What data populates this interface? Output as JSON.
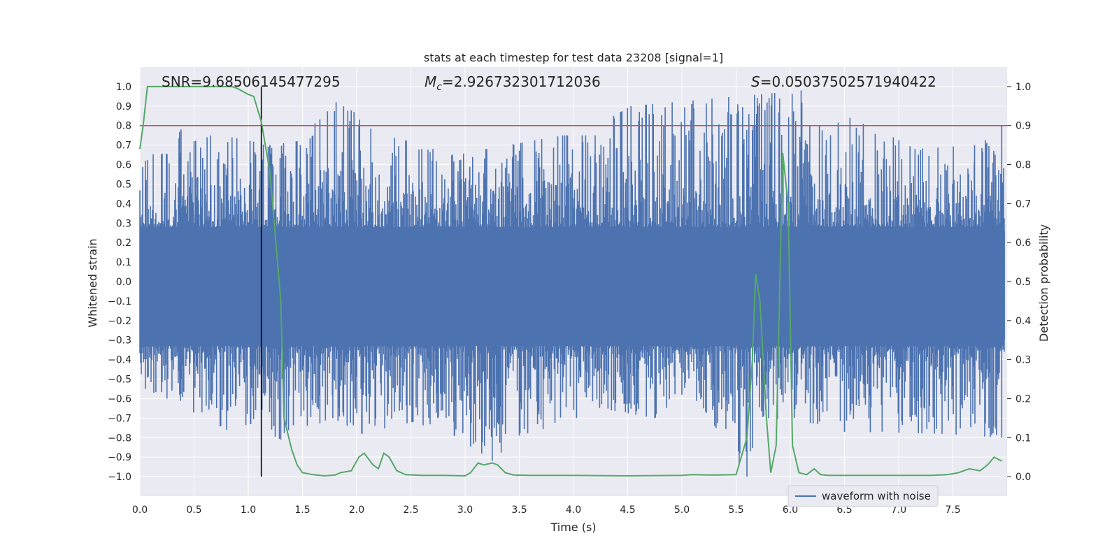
{
  "chart_data": {
    "type": "line",
    "title": "stats at each timestep for test data 23208 [signal=1]",
    "xlabel": "Time (s)",
    "ylabel": "Whitened strain",
    "y2label": "Detection probability",
    "xlim": [
      0,
      8
    ],
    "ylim": [
      -1.1,
      1.1
    ],
    "y2lim": [
      -0.05,
      1.05
    ],
    "xticks": [
      0.0,
      0.5,
      1.0,
      1.5,
      2.0,
      2.5,
      3.0,
      3.5,
      4.0,
      4.5,
      5.0,
      5.5,
      6.0,
      6.5,
      7.0,
      7.5
    ],
    "xtick_labels": [
      "0.0",
      "0.5",
      "1.0",
      "1.5",
      "2.0",
      "2.5",
      "3.0",
      "3.5",
      "4.0",
      "4.5",
      "5.0",
      "5.5",
      "6.0",
      "6.5",
      "7.0",
      "7.5"
    ],
    "yticks": [
      1.0,
      0.9,
      0.8,
      0.7,
      0.6,
      0.5,
      0.4,
      0.3,
      0.2,
      0.1,
      0.0,
      -0.1,
      -0.2,
      -0.3,
      -0.4,
      -0.5,
      -0.6,
      -0.7,
      -0.8,
      -0.9,
      -1.0
    ],
    "ytick_labels": [
      "1.0",
      "0.9",
      "0.8",
      "0.7",
      "0.6",
      "0.5",
      "0.4",
      "0.3",
      "0.2",
      "0.1",
      "0.0",
      "−0.1",
      "−0.2",
      "−0.3",
      "−0.4",
      "−0.5",
      "−0.6",
      "−0.7",
      "−0.8",
      "−0.9",
      "−1.0"
    ],
    "y2ticks": [
      1.0,
      0.9,
      0.8,
      0.7,
      0.6,
      0.5,
      0.4,
      0.3,
      0.2,
      0.1,
      0.0
    ],
    "y2tick_labels": [
      "1.0",
      "0.9",
      "0.8",
      "0.7",
      "0.6",
      "0.5",
      "0.4",
      "0.3",
      "0.2",
      "0.1",
      "0.0"
    ],
    "annotations": {
      "snr": "SNR=9.68506145477295",
      "mc_symbol": "M",
      "mc_sub": "c",
      "mc_value": "=2.926732301712036",
      "s_symbol": "S",
      "s_value": "=0.05037502571940422"
    },
    "legend": {
      "label": "waveform with noise",
      "position": "lower-right"
    },
    "vline_x": 1.12,
    "threshold_prob": 0.9,
    "colors": {
      "waveform": "#4c72b0",
      "probability": "#55a868",
      "threshold": "#c44e52",
      "vline": "#000000",
      "axes_bg": "#eaeaf2",
      "grid": "#ffffff"
    },
    "waveform_peaks": {
      "max": [
        [
          0.05,
          0.62
        ],
        [
          0.38,
          0.78
        ],
        [
          0.5,
          0.72
        ],
        [
          0.62,
          0.74
        ],
        [
          0.65,
          0.75
        ],
        [
          0.85,
          0.74
        ],
        [
          1.2,
          0.7
        ],
        [
          1.45,
          0.72
        ],
        [
          1.81,
          0.92
        ],
        [
          2.6,
          0.68
        ],
        [
          3.2,
          0.68
        ],
        [
          3.9,
          0.75
        ],
        [
          4.2,
          0.75
        ],
        [
          4.37,
          0.85
        ],
        [
          4.53,
          0.9
        ],
        [
          6.1,
          0.98
        ],
        [
          6.18,
          0.8
        ],
        [
          6.55,
          0.84
        ],
        [
          6.95,
          0.74
        ],
        [
          7.15,
          0.68
        ],
        [
          7.7,
          0.7
        ],
        [
          7.95,
          0.8
        ]
      ],
      "min": [
        [
          0.05,
          -0.55
        ],
        [
          0.25,
          -0.6
        ],
        [
          0.8,
          -0.76
        ],
        [
          1.02,
          -0.73
        ],
        [
          1.3,
          -0.81
        ],
        [
          1.78,
          -0.7
        ],
        [
          2.05,
          -0.78
        ],
        [
          2.52,
          -0.72
        ],
        [
          2.9,
          -0.79
        ],
        [
          3.25,
          -0.92
        ],
        [
          3.5,
          -0.79
        ],
        [
          4.35,
          -0.66
        ],
        [
          4.75,
          -0.7
        ],
        [
          5.0,
          -0.58
        ],
        [
          5.2,
          -0.65
        ],
        [
          5.6,
          -1.0
        ],
        [
          5.8,
          -0.7
        ],
        [
          6.25,
          -0.73
        ],
        [
          6.5,
          -0.77
        ],
        [
          7.4,
          -0.78
        ],
        [
          7.95,
          -0.8
        ]
      ]
    },
    "probability_series": {
      "x": [
        0.0,
        0.03,
        0.07,
        0.15,
        0.3,
        0.5,
        0.7,
        0.85,
        0.9,
        1.0,
        1.05,
        1.12,
        1.2,
        1.3,
        1.33,
        1.4,
        1.45,
        1.5,
        1.6,
        1.7,
        1.8,
        1.85,
        1.95,
        2.02,
        2.07,
        2.15,
        2.2,
        2.25,
        2.3,
        2.37,
        2.45,
        2.6,
        2.8,
        3.0,
        3.05,
        3.12,
        3.17,
        3.25,
        3.3,
        3.37,
        3.45,
        3.6,
        4.0,
        4.5,
        5.0,
        5.1,
        5.3,
        5.5,
        5.6,
        5.65,
        5.68,
        5.72,
        5.78,
        5.82,
        5.87,
        5.93,
        5.98,
        6.02,
        6.08,
        6.15,
        6.22,
        6.28,
        6.35,
        6.5,
        6.8,
        7.0,
        7.3,
        7.45,
        7.55,
        7.65,
        7.75,
        7.82,
        7.88,
        7.95
      ],
      "y": [
        0.84,
        0.9,
        1.0,
        1.0,
        1.0,
        1.0,
        1.0,
        1.0,
        0.995,
        0.98,
        0.975,
        0.91,
        0.78,
        0.45,
        0.15,
        0.07,
        0.03,
        0.01,
        0.005,
        0.002,
        0.004,
        0.01,
        0.015,
        0.05,
        0.06,
        0.03,
        0.02,
        0.06,
        0.05,
        0.015,
        0.005,
        0.003,
        0.003,
        0.002,
        0.01,
        0.035,
        0.03,
        0.035,
        0.03,
        0.01,
        0.004,
        0.003,
        0.003,
        0.002,
        0.003,
        0.005,
        0.004,
        0.005,
        0.1,
        0.3,
        0.52,
        0.45,
        0.15,
        0.01,
        0.08,
        0.83,
        0.7,
        0.08,
        0.01,
        0.005,
        0.02,
        0.005,
        0.003,
        0.003,
        0.003,
        0.003,
        0.003,
        0.005,
        0.01,
        0.02,
        0.015,
        0.03,
        0.05,
        0.04
      ]
    }
  }
}
